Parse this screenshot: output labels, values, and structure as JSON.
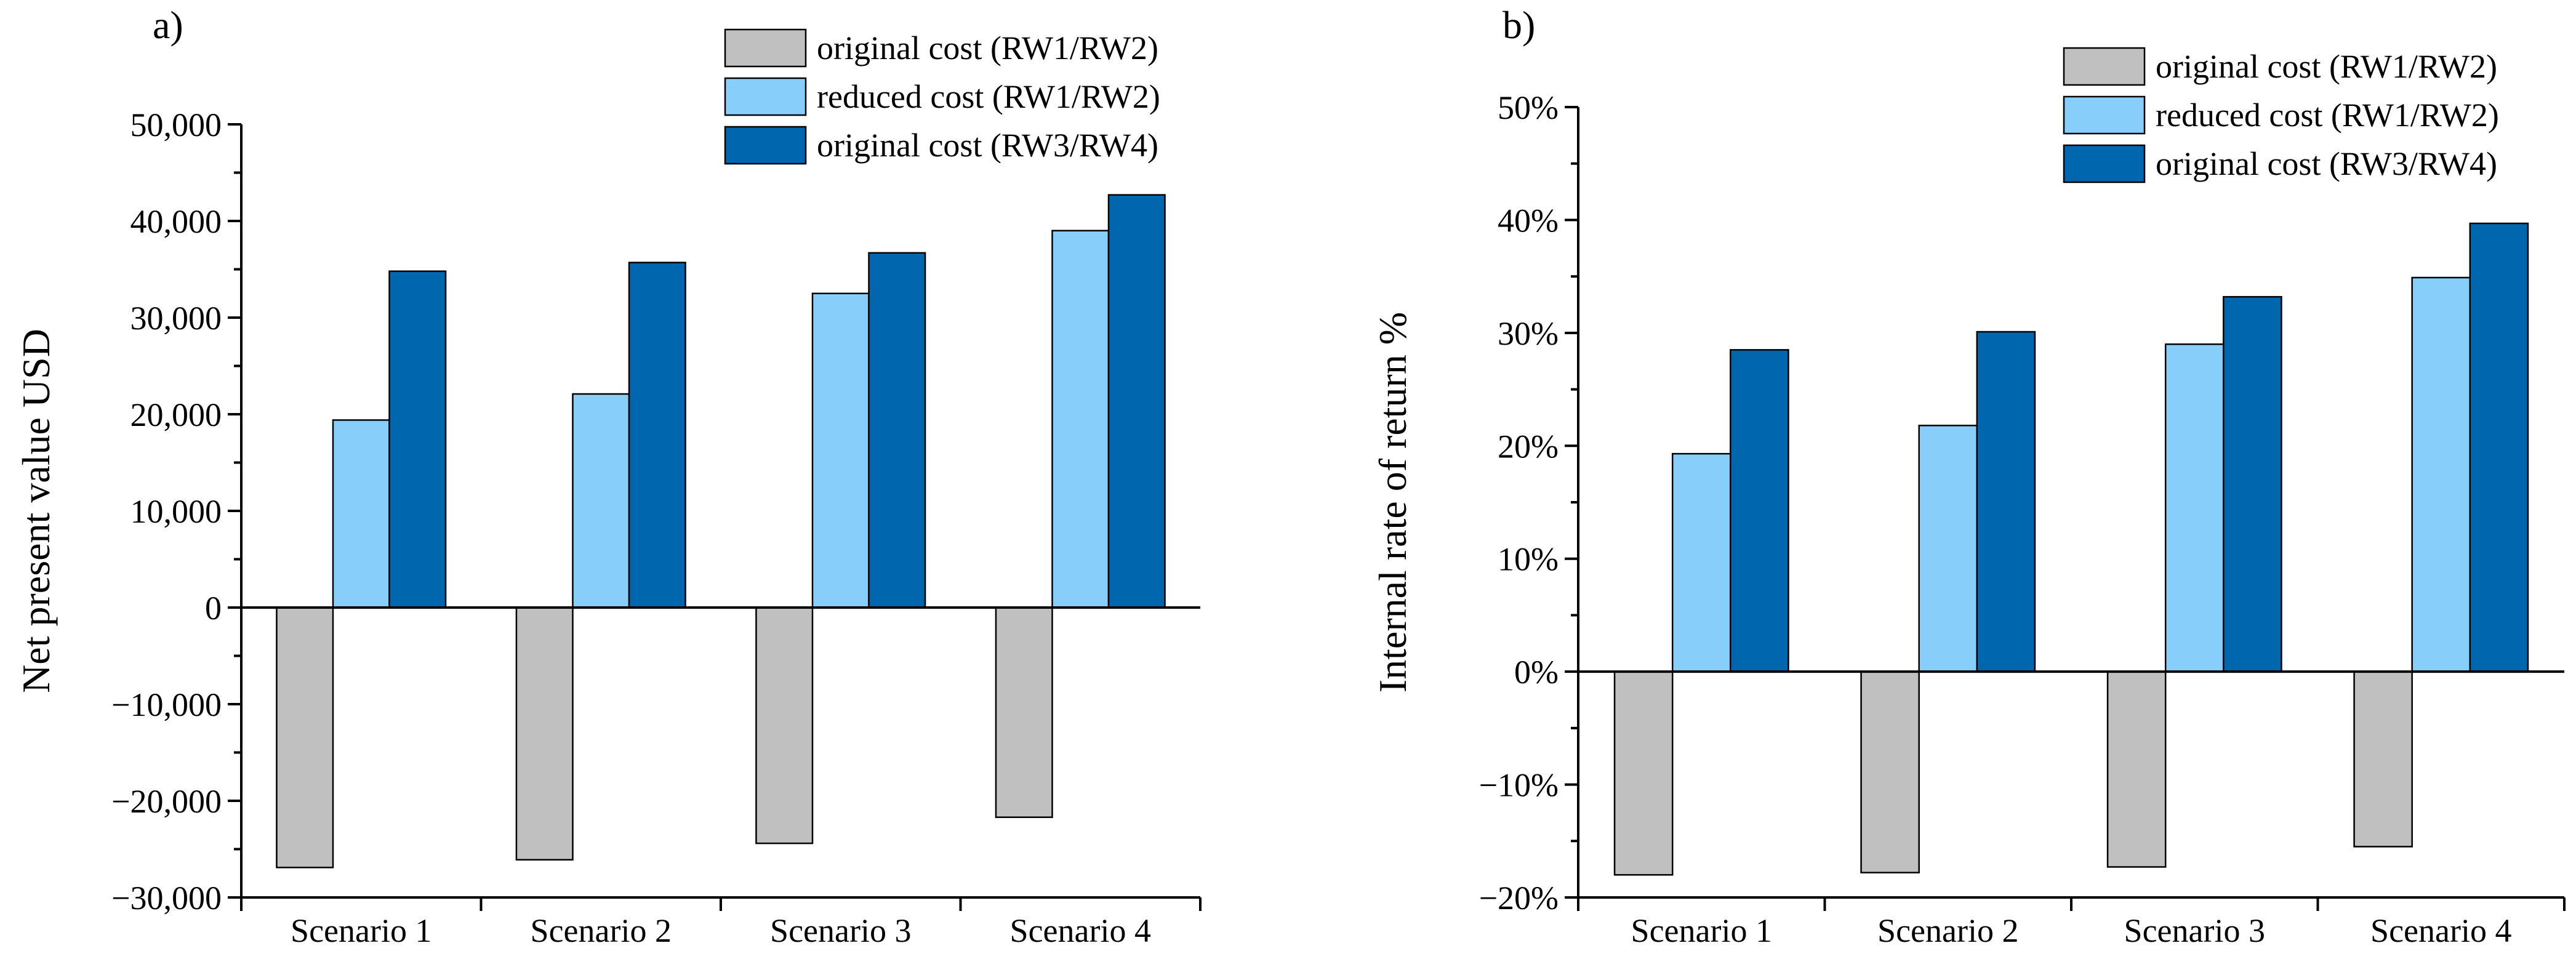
{
  "colors": {
    "original_rw12": "#c0c0c0",
    "reduced_rw12": "#87cefa",
    "original_rw34": "#0066ad",
    "axis": "#000000",
    "background": "#ffffff"
  },
  "chart_data": [
    {
      "type": "bar",
      "panel_label": "a)",
      "title": "",
      "xlabel": "",
      "ylabel": "Net present value USD",
      "ylim": [
        -30000,
        50000
      ],
      "y_major_step": 10000,
      "y_minor_step": 5000,
      "ytick_labels": [
        "−30,000",
        "−20,000",
        "−10,000",
        "0",
        "10,000",
        "20,000",
        "30,000",
        "40,000",
        "50,000"
      ],
      "categories": [
        "Scenario 1",
        "Scenario 2",
        "Scenario 3",
        "Scenario 4"
      ],
      "legend_position": "top-right",
      "grid": false,
      "series": [
        {
          "name": "original cost (RW1/RW2)",
          "color_key": "original_rw12",
          "values": [
            -26900,
            -26100,
            -24400,
            -21700
          ]
        },
        {
          "name": "reduced cost (RW1/RW2)",
          "color_key": "reduced_rw12",
          "values": [
            19400,
            22100,
            32500,
            39000
          ]
        },
        {
          "name": "original cost (RW3/RW4)",
          "color_key": "original_rw34",
          "values": [
            34800,
            35700,
            36700,
            42700
          ]
        }
      ]
    },
    {
      "type": "bar",
      "panel_label": "b)",
      "title": "",
      "xlabel": "",
      "ylabel": "Internal rate of return %",
      "ylim": [
        -20,
        50
      ],
      "y_major_step": 10,
      "y_minor_step": 5,
      "ytick_labels": [
        "−20%",
        "−10%",
        "0%",
        "10%",
        "20%",
        "30%",
        "40%",
        "50%"
      ],
      "categories": [
        "Scenario 1",
        "Scenario 2",
        "Scenario 3",
        "Scenario 4"
      ],
      "legend_position": "top-right",
      "grid": false,
      "series": [
        {
          "name": "original cost (RW1/RW2)",
          "color_key": "original_rw12",
          "values": [
            -18.0,
            -17.8,
            -17.3,
            -15.5
          ]
        },
        {
          "name": "reduced cost (RW1/RW2)",
          "color_key": "reduced_rw12",
          "values": [
            19.3,
            21.8,
            29.0,
            34.9
          ]
        },
        {
          "name": "original cost (RW3/RW4)",
          "color_key": "original_rw34",
          "values": [
            28.5,
            30.1,
            33.2,
            39.7
          ]
        }
      ]
    }
  ]
}
